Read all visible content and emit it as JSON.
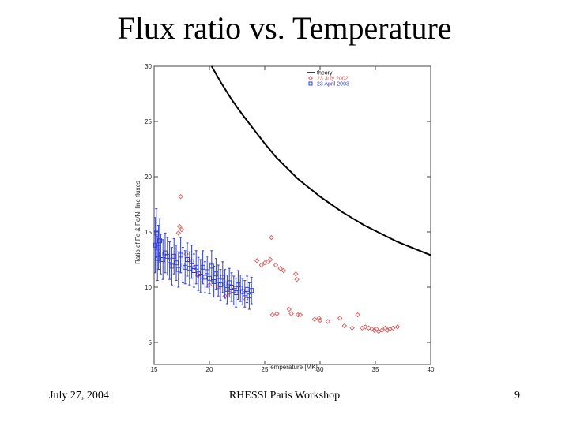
{
  "slide": {
    "title": "Flux ratio vs. Temperature",
    "footer_date": "July 27, 2004",
    "footer_event": "RHESSI Paris Workshop",
    "page_number": "9"
  },
  "chart_data": {
    "type": "scatter",
    "title": "",
    "xlabel": "Temperature [MK]",
    "ylabel": "Ratio of Fe & Fe/Ni line fluxes",
    "xlim": [
      15,
      40
    ],
    "ylim": [
      3,
      30
    ],
    "x_ticks": [
      15,
      20,
      25,
      30,
      35,
      40
    ],
    "y_ticks": [
      5,
      10,
      15,
      20,
      25,
      30
    ],
    "legend_position": "top-right",
    "series": [
      {
        "name": "theory",
        "kind": "line",
        "color": "#000000",
        "x": [
          20.2,
          21,
          22,
          23,
          24,
          25,
          26,
          27,
          28,
          29,
          30,
          31,
          32,
          33,
          34,
          35,
          36,
          37,
          38,
          39,
          40
        ],
        "y": [
          30.0,
          28.6,
          27.0,
          25.6,
          24.3,
          23.0,
          21.8,
          20.8,
          19.8,
          19.0,
          18.2,
          17.5,
          16.8,
          16.2,
          15.6,
          15.1,
          14.6,
          14.1,
          13.7,
          13.3,
          12.9
        ]
      },
      {
        "name": "23 July 2002",
        "kind": "scatter",
        "marker": "diamond",
        "color": "#e05a5a",
        "x": [
          17.4,
          17.3,
          17.5,
          17.2,
          17.9,
          18.2,
          18.6,
          18.9,
          20.0,
          20.8,
          21.4,
          21.8,
          22.3,
          23.3,
          24.3,
          24.7,
          25.0,
          25.3,
          25.5,
          25.6,
          25.7,
          26.0,
          26.1,
          26.4,
          26.7,
          27.2,
          27.4,
          27.8,
          27.9,
          28.0,
          28.2,
          29.5,
          29.9,
          30.0,
          30.7,
          31.8,
          32.2,
          32.9,
          33.4,
          33.8,
          34.1,
          34.4,
          34.7,
          34.9,
          35.1,
          35.3,
          35.6,
          35.9,
          36.1,
          36.3,
          36.6,
          37.0
        ],
        "y": [
          18.2,
          15.5,
          15.2,
          14.9,
          13.0,
          12.4,
          11.8,
          11.1,
          10.2,
          10.0,
          9.2,
          9.5,
          9.9,
          8.9,
          12.4,
          12.0,
          12.2,
          12.3,
          12.5,
          14.5,
          7.5,
          12.0,
          7.6,
          11.7,
          11.5,
          8.0,
          7.6,
          11.2,
          10.7,
          7.5,
          7.5,
          7.1,
          7.2,
          7.0,
          6.9,
          7.2,
          6.5,
          6.3,
          7.5,
          6.3,
          6.4,
          6.3,
          6.2,
          6.1,
          6.2,
          6.0,
          6.1,
          6.3,
          6.1,
          6.2,
          6.3,
          6.4
        ]
      },
      {
        "name": "23 April 2003",
        "kind": "scatter",
        "marker": "square",
        "color": "#2f3fd8",
        "x": [
          15.1,
          15.2,
          15.3,
          15.4,
          15.5,
          15.6,
          15.8,
          16.0,
          16.2,
          16.4,
          16.6,
          16.8,
          17.0,
          17.2,
          17.4,
          17.6,
          17.8,
          18.0,
          18.2,
          18.4,
          18.6,
          18.8,
          19.0,
          19.2,
          19.4,
          19.6,
          19.8,
          20.0,
          20.2,
          20.4,
          20.6,
          20.8,
          21.0,
          21.2,
          21.4,
          21.6,
          21.8,
          22.0,
          22.2,
          22.4,
          22.6,
          22.8,
          23.0,
          23.2,
          23.4,
          23.6,
          23.8
        ],
        "y": [
          13.8,
          14.9,
          12.6,
          13.6,
          14.2,
          13.0,
          12.5,
          13.1,
          12.8,
          12.4,
          11.9,
          12.8,
          12.2,
          11.6,
          12.9,
          12.0,
          11.8,
          12.5,
          11.7,
          12.3,
          11.5,
          11.8,
          11.2,
          11.0,
          11.8,
          10.9,
          11.4,
          10.8,
          11.9,
          10.5,
          11.2,
          10.6,
          10.2,
          10.9,
          10.3,
          9.8,
          10.4,
          10.0,
          9.7,
          9.5,
          10.2,
          9.9,
          9.6,
          9.4,
          9.8,
          9.2,
          9.7
        ],
        "yerr": [
          2.5,
          2.2,
          2.0,
          2.0,
          2.0,
          1.8,
          1.8,
          1.8,
          1.7,
          1.7,
          1.7,
          1.6,
          1.6,
          1.6,
          1.6,
          1.6,
          1.5,
          1.5,
          1.5,
          1.5,
          1.5,
          1.5,
          1.5,
          1.5,
          1.5,
          1.4,
          1.4,
          1.4,
          1.4,
          1.4,
          1.4,
          1.4,
          1.4,
          1.4,
          1.3,
          1.3,
          1.3,
          1.3,
          1.3,
          1.3,
          1.3,
          1.2,
          1.2,
          1.2,
          1.2,
          1.2,
          1.2
        ]
      }
    ]
  }
}
